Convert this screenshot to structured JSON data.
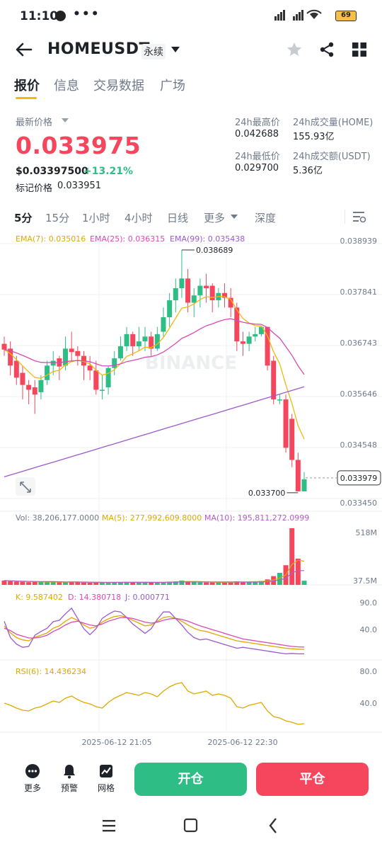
{
  "status_bar": {
    "time": "11:10",
    "dots": "•••",
    "signal": "HD HD",
    "battery": "69"
  },
  "header": {
    "symbol": "HOMEUSDT",
    "contract_type": "永续"
  },
  "tabs": [
    {
      "label": "报价",
      "active": true
    },
    {
      "label": "信息",
      "active": false
    },
    {
      "label": "交易数据",
      "active": false
    },
    {
      "label": "广场",
      "active": false
    }
  ],
  "price": {
    "last_label": "最新价格",
    "last": "0.033975",
    "usd": "$0.03397500",
    "change": "+13.21%",
    "mark_label": "标记价格",
    "mark": "0.033951"
  },
  "stats": {
    "high_label": "24h最高价",
    "high": "0.042688",
    "low_label": "24h最低价",
    "low": "0.029700",
    "vol_label": "24h成交量(HOME)",
    "vol": "155.93亿",
    "amt_label": "24h成交额(USDT)",
    "amt": "5.36亿"
  },
  "intervals": [
    {
      "label": "5分",
      "active": true
    },
    {
      "label": "15分",
      "active": false
    },
    {
      "label": "1小时",
      "active": false
    },
    {
      "label": "4小时",
      "active": false
    },
    {
      "label": "日线",
      "active": false
    },
    {
      "label": "更多",
      "active": false
    },
    {
      "label": "深度",
      "active": false
    }
  ],
  "indicators": {
    "ema7": "EMA(7): 0.035016",
    "ema25": "EMA(25): 0.036315",
    "ema99": "EMA(99): 0.035438",
    "vol": "Vol: 38,206,177.0000",
    "ma5": "MA(5): 277,992,609.8000",
    "ma10": "MA(10): 195,811,272.0999",
    "k": "K: 9.587402",
    "d": "D: 14.380718",
    "j": "J: 0.000771",
    "rsi": "RSI(6): 14.436234"
  },
  "price_axis": [
    "0.038939",
    "0.037841",
    "0.036743",
    "0.035646",
    "0.034548",
    "0.033450"
  ],
  "current_price_tag": "0.033979",
  "high_marker": "0.038689",
  "low_marker": "0.033700",
  "vol_axis": [
    "518M",
    "37.5M"
  ],
  "kdj_axis": [
    "90.0",
    "40.0"
  ],
  "rsi_axis": [
    "80.0",
    "40.0"
  ],
  "time_axis": [
    "2025-06-12 21:05",
    "2025-06-12 22:30"
  ],
  "watermark": "BINANCE",
  "bottom_bar": {
    "more": "更多",
    "alert": "预警",
    "grid": "网格",
    "open": "开仓",
    "close": "平仓"
  },
  "colors": {
    "up": "#2ebd85",
    "down": "#f6465d",
    "accent": "#f0b90b",
    "ema7": "#f0b90b",
    "ema25": "#d64bb5",
    "ema99": "#9b59d0"
  },
  "chart_data": {
    "type": "candlestick",
    "series_ema": [
      "EMA(7)",
      "EMA(25)",
      "EMA(99)"
    ],
    "ylim": [
      0.03345,
      0.038939
    ],
    "candles": [
      [
        0.03675,
        0.03663,
        0.0369,
        0.0365
      ],
      [
        0.03665,
        0.0363,
        0.0368,
        0.0361
      ],
      [
        0.0364,
        0.03605,
        0.0365,
        0.0359
      ],
      [
        0.03615,
        0.0359,
        0.0363,
        0.0356
      ],
      [
        0.0359,
        0.0358,
        0.036,
        0.0355
      ],
      [
        0.03585,
        0.0357,
        0.036,
        0.0353
      ],
      [
        0.03575,
        0.036,
        0.0361,
        0.0356
      ],
      [
        0.036,
        0.0363,
        0.0364,
        0.0359
      ],
      [
        0.0363,
        0.0364,
        0.0366,
        0.0361
      ],
      [
        0.03645,
        0.03628,
        0.0365,
        0.036
      ],
      [
        0.0363,
        0.03665,
        0.0369,
        0.0362
      ],
      [
        0.03665,
        0.03658,
        0.037,
        0.0364
      ],
      [
        0.0366,
        0.0365,
        0.0367,
        0.0363
      ],
      [
        0.0365,
        0.0363,
        0.0366,
        0.036
      ],
      [
        0.0363,
        0.0362,
        0.0365,
        0.036
      ],
      [
        0.0362,
        0.0358,
        0.0364,
        0.0357
      ],
      [
        0.0358,
        0.0358,
        0.0361,
        0.0356
      ],
      [
        0.03585,
        0.03625,
        0.0363,
        0.0357
      ],
      [
        0.03625,
        0.03645,
        0.0366,
        0.0361
      ],
      [
        0.03645,
        0.0367,
        0.0369,
        0.0364
      ],
      [
        0.0367,
        0.03695,
        0.0371,
        0.0366
      ],
      [
        0.03695,
        0.0367,
        0.037,
        0.0365
      ],
      [
        0.0367,
        0.0368,
        0.0371,
        0.0366
      ],
      [
        0.0368,
        0.0369,
        0.0371,
        0.0366
      ],
      [
        0.0369,
        0.03665,
        0.037,
        0.0365
      ],
      [
        0.03665,
        0.03695,
        0.0371,
        0.0366
      ],
      [
        0.037,
        0.0373,
        0.0375,
        0.0369
      ],
      [
        0.0373,
        0.03765,
        0.0378,
        0.0371
      ],
      [
        0.03765,
        0.0379,
        0.0381,
        0.0374
      ],
      [
        0.0379,
        0.0381,
        0.03869,
        0.0377
      ],
      [
        0.0381,
        0.0376,
        0.0383,
        0.0374
      ],
      [
        0.0376,
        0.03775,
        0.0379,
        0.0373
      ],
      [
        0.03775,
        0.03795,
        0.0381,
        0.0375
      ],
      [
        0.03795,
        0.0379,
        0.0382,
        0.0376
      ],
      [
        0.03795,
        0.03765,
        0.038,
        0.0374
      ],
      [
        0.03765,
        0.0378,
        0.0379,
        0.0375
      ],
      [
        0.0378,
        0.0377,
        0.038,
        0.0375
      ],
      [
        0.0377,
        0.0375,
        0.0379,
        0.0373
      ],
      [
        0.0375,
        0.0368,
        0.0376,
        0.0366
      ],
      [
        0.0368,
        0.03675,
        0.037,
        0.0365
      ],
      [
        0.03675,
        0.0369,
        0.037,
        0.0366
      ],
      [
        0.0369,
        0.03695,
        0.0371,
        0.0368
      ],
      [
        0.03695,
        0.0371,
        0.0371,
        0.0369
      ],
      [
        0.0371,
        0.0363,
        0.0371,
        0.0362
      ],
      [
        0.0364,
        0.0356,
        0.0365,
        0.0355
      ],
      [
        0.0356,
        0.0356,
        0.0357,
        0.0355
      ],
      [
        0.0356,
        0.0346,
        0.0357,
        0.0345
      ],
      [
        0.0352,
        0.03435,
        0.0353,
        0.0342
      ],
      [
        0.03435,
        0.0337,
        0.0345,
        0.0337
      ],
      [
        0.0337,
        0.03395,
        0.0341,
        0.0337
      ]
    ],
    "volume": [
      40,
      35,
      30,
      28,
      25,
      30,
      26,
      24,
      28,
      22,
      26,
      30,
      24,
      22,
      20,
      22,
      24,
      22,
      24,
      26,
      28,
      22,
      24,
      22,
      20,
      24,
      26,
      30,
      32,
      40,
      28,
      26,
      24,
      22,
      22,
      20,
      24,
      26,
      32,
      30,
      28,
      30,
      36,
      50,
      80,
      110,
      180,
      518,
      240,
      38
    ]
  }
}
